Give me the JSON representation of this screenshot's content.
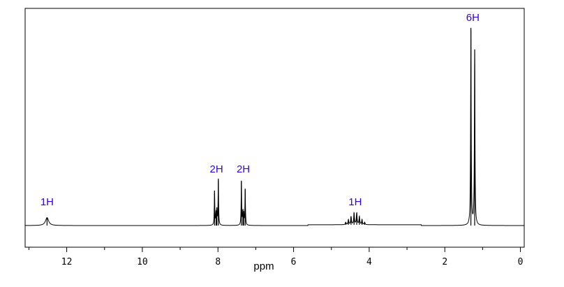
{
  "chart_data": {
    "type": "line",
    "title": "",
    "xlabel": "ppm",
    "ylabel": "",
    "x_reversed": true,
    "xlim": [
      13.1,
      -0.1
    ],
    "ylim": [
      0,
      1
    ],
    "grid": false,
    "x_ticks": [
      12,
      10,
      8,
      6,
      4,
      2,
      0
    ],
    "x_tick_labels": [
      "12",
      "10",
      "8",
      "6",
      "4",
      "2",
      "0"
    ],
    "label_color": "#3300ee",
    "line_color": "#000000",
    "peaks": [
      {
        "ppm": 12.52,
        "height": 0.04,
        "width": 0.05
      },
      {
        "ppm": 8.09,
        "height": 0.17,
        "width": 0.008
      },
      {
        "ppm": 8.05,
        "height": 0.05,
        "width": 0.01
      },
      {
        "ppm": 8.03,
        "height": 0.07,
        "width": 0.01
      },
      {
        "ppm": 7.99,
        "height": 0.23,
        "width": 0.008
      },
      {
        "ppm": 7.38,
        "height": 0.22,
        "width": 0.008
      },
      {
        "ppm": 7.34,
        "height": 0.06,
        "width": 0.01
      },
      {
        "ppm": 7.32,
        "height": 0.05,
        "width": 0.01
      },
      {
        "ppm": 7.28,
        "height": 0.18,
        "width": 0.008
      },
      {
        "ppm": 4.62,
        "height": 0.012,
        "width": 0.012
      },
      {
        "ppm": 4.55,
        "height": 0.025,
        "width": 0.012
      },
      {
        "ppm": 4.48,
        "height": 0.04,
        "width": 0.012
      },
      {
        "ppm": 4.4,
        "height": 0.058,
        "width": 0.012
      },
      {
        "ppm": 4.33,
        "height": 0.058,
        "width": 0.012
      },
      {
        "ppm": 4.26,
        "height": 0.04,
        "width": 0.012
      },
      {
        "ppm": 4.19,
        "height": 0.025,
        "width": 0.012
      },
      {
        "ppm": 4.12,
        "height": 0.012,
        "width": 0.012
      },
      {
        "ppm": 1.31,
        "height": 0.99,
        "width": 0.009
      },
      {
        "ppm": 1.21,
        "height": 0.88,
        "width": 0.009
      }
    ],
    "integral_steps": [
      {
        "from": 5.62,
        "to": 2.62,
        "offset": 0.004
      }
    ],
    "annotations": [
      {
        "text": "1H",
        "ppm": 12.52,
        "height": 0.12
      },
      {
        "text": "2H",
        "ppm": 8.04,
        "height": 0.285
      },
      {
        "text": "2H",
        "ppm": 7.33,
        "height": 0.285
      },
      {
        "text": "1H",
        "ppm": 4.37,
        "height": 0.12
      },
      {
        "text": "6H",
        "ppm": 1.26,
        "height": 1.05
      }
    ]
  }
}
